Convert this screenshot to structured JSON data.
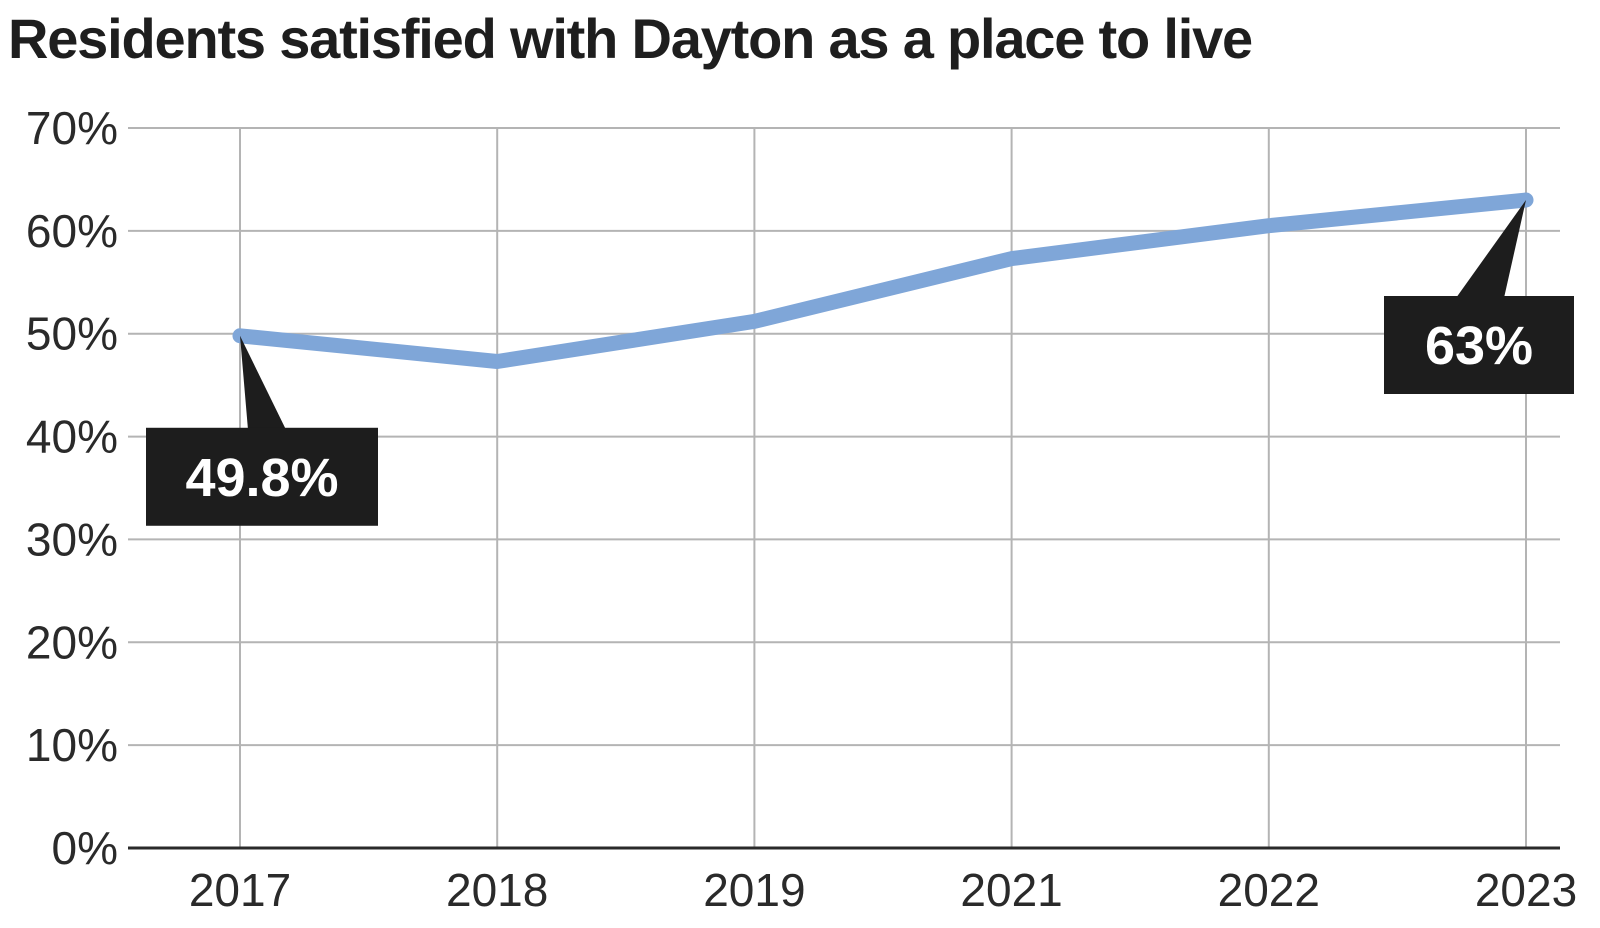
{
  "title": "Residents satisfied with Dayton as a place to live",
  "chart_data": {
    "type": "line",
    "title": "Residents satisfied with Dayton as a place to live",
    "categories": [
      "2017",
      "2018",
      "2019",
      "2021",
      "2022",
      "2023"
    ],
    "series": [
      {
        "values": [
          49.8,
          47.3,
          51.2,
          57.3,
          60.5,
          63.0
        ],
        "color": "#7fa6d8"
      }
    ],
    "yticks": [
      0,
      10,
      20,
      30,
      40,
      50,
      60,
      70
    ],
    "ytick_labels": [
      "0%",
      "10%",
      "20%",
      "30%",
      "40%",
      "50%",
      "60%",
      "70%"
    ],
    "ylim": [
      0,
      70
    ],
    "grid": true,
    "annotations": [
      {
        "index": 0,
        "text": "49.8%",
        "placement": "below-right"
      },
      {
        "index": 5,
        "text": "63%",
        "placement": "below-left"
      }
    ]
  }
}
